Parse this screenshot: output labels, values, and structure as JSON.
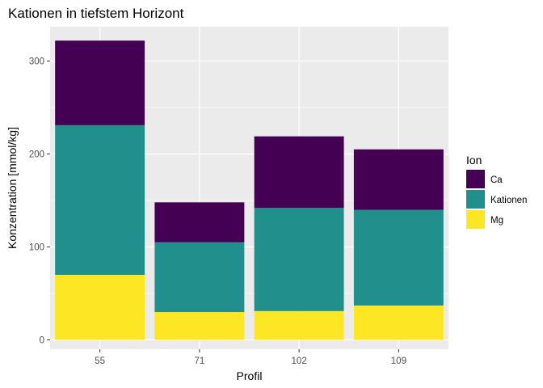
{
  "chart_data": {
    "type": "bar",
    "stacked": true,
    "title": "Kationen in tiefstem Horizont",
    "xlabel": "Profil",
    "ylabel": "Konzentration [mmol/kg]",
    "categories": [
      "55",
      "71",
      "102",
      "109"
    ],
    "ylim": [
      -10,
      337
    ],
    "yticks": [
      0,
      100,
      200,
      300
    ],
    "grid": true,
    "legend": {
      "title": "Ion",
      "position": "right"
    },
    "series": [
      {
        "name": "Ca",
        "color": "#440154",
        "values": [
          91,
          43,
          77,
          65
        ]
      },
      {
        "name": "Kationen",
        "color": "#21908C",
        "values": [
          161,
          75,
          111,
          103
        ]
      },
      {
        "name": "Mg",
        "color": "#FDE725",
        "values": [
          70,
          30,
          31,
          37
        ]
      }
    ]
  }
}
